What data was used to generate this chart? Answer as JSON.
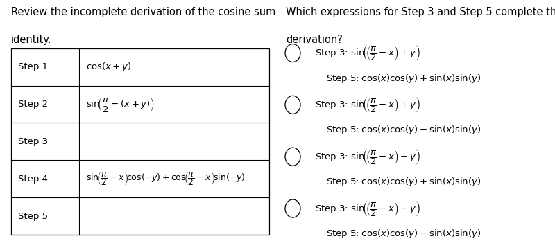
{
  "bg_color": "#ffffff",
  "left_title_line1": "Review the incomplete derivation of the cosine sum",
  "left_title_line2": "identity.",
  "right_title_line1": "Which expressions for Step 3 and Step 5 complete the",
  "right_title_line2": "derivation?",
  "table_steps": [
    "Step 1",
    "Step 2",
    "Step 3",
    "Step 4",
    "Step 5"
  ],
  "text_color": "#000000",
  "font_size_title": 10.5,
  "font_size_table": 9.5,
  "font_size_options": 9.5,
  "option_step3_signs": [
    "+",
    "+",
    "-",
    "-"
  ],
  "option_step5_signs": [
    "+",
    "-",
    "+",
    "-"
  ]
}
